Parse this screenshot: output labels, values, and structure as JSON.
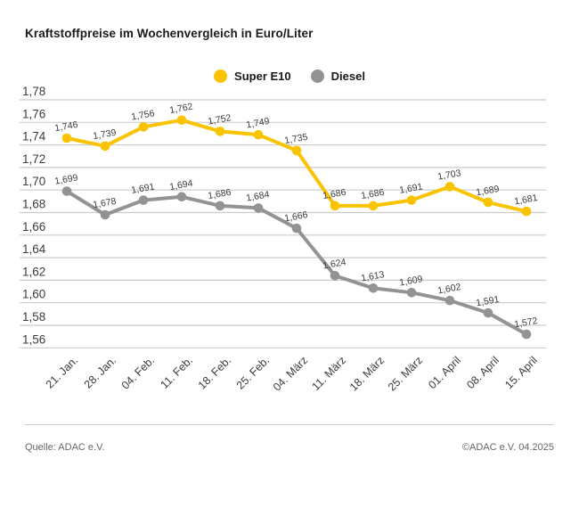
{
  "chart_data": {
    "type": "line",
    "title": "Kraftstoffpreise im Wochenvergleich in Euro/Liter",
    "xlabel": "",
    "ylabel": "",
    "categories": [
      "21. Jan.",
      "28. Jan.",
      "04. Feb.",
      "11. Feb.",
      "18. Feb.",
      "25. Feb.",
      "04. März",
      "11. März",
      "18. März",
      "25. März",
      "01. April",
      "08. April",
      "15. April"
    ],
    "series": [
      {
        "name": "Super E10",
        "color": "#FAC300",
        "values": [
          1.746,
          1.739,
          1.756,
          1.762,
          1.752,
          1.749,
          1.735,
          1.686,
          1.686,
          1.691,
          1.703,
          1.689,
          1.681
        ]
      },
      {
        "name": "Diesel",
        "color": "#939393",
        "values": [
          1.699,
          1.678,
          1.691,
          1.694,
          1.686,
          1.684,
          1.666,
          1.624,
          1.613,
          1.609,
          1.602,
          1.591,
          1.572
        ]
      }
    ],
    "ylim": [
      1.56,
      1.78
    ],
    "ytick_step": 0.02,
    "ytick_labels": [
      "1,78",
      "1,76",
      "1,74",
      "1,72",
      "1,70",
      "1,68",
      "1,66",
      "1,64",
      "1,62",
      "1,60",
      "1,58",
      "1,56"
    ],
    "grid": true,
    "point_labels": true,
    "legend_position": "top-center",
    "decimal_separator": ","
  },
  "legend": {
    "items": [
      {
        "label": "Super E10",
        "color": "#FAC300"
      },
      {
        "label": "Diesel",
        "color": "#939393"
      }
    ]
  },
  "footer": {
    "source": "Quelle: ADAC e.V.",
    "copyright": "©ADAC e.V. 04.2025"
  },
  "colors": {
    "gridline": "#cbcbcb",
    "axis_text": "#3c3c3c",
    "point_label_text": "#3c3c3c",
    "title_text": "#1a1a1a",
    "footer_text": "#666666",
    "divider": "#cbcbcb",
    "background": "#ffffff"
  }
}
